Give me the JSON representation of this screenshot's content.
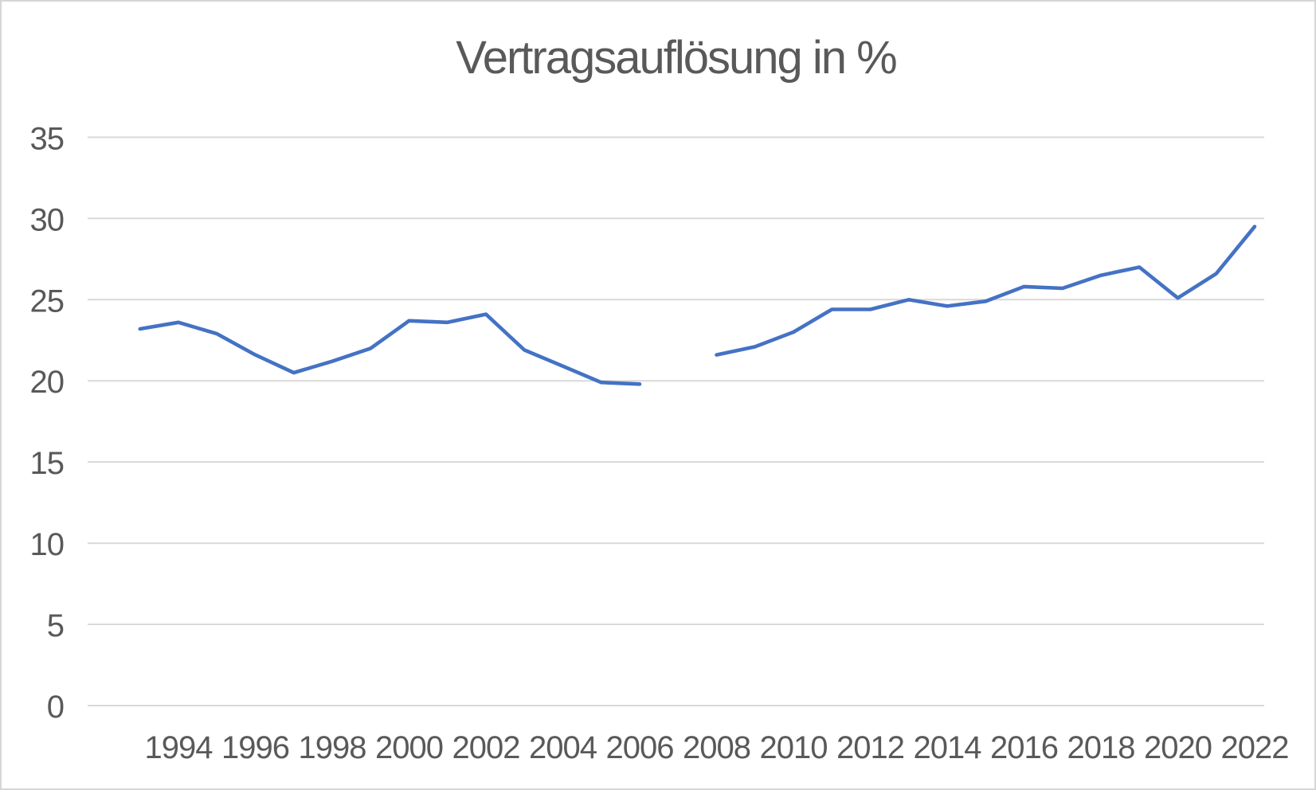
{
  "chart": {
    "title": "Vertragsauflösung in %"
  },
  "chart_data": {
    "type": "line",
    "title": "Vertragsauflösung in %",
    "xlabel": "",
    "ylabel": "",
    "x": [
      1993,
      1994,
      1995,
      1996,
      1997,
      1998,
      1999,
      2000,
      2001,
      2002,
      2003,
      2004,
      2005,
      2006,
      2007,
      2008,
      2009,
      2010,
      2011,
      2012,
      2013,
      2014,
      2015,
      2016,
      2017,
      2018,
      2019,
      2020,
      2021,
      2022
    ],
    "series": [
      {
        "name": "Vertragsauflösung",
        "values": [
          23.2,
          23.6,
          22.9,
          21.6,
          20.5,
          21.2,
          22.0,
          23.7,
          23.6,
          24.1,
          21.9,
          20.9,
          19.9,
          19.8,
          null,
          21.6,
          22.1,
          23.0,
          24.4,
          24.4,
          25.0,
          24.6,
          24.9,
          25.8,
          25.7,
          26.5,
          27.0,
          25.1,
          26.6,
          29.5
        ]
      }
    ],
    "ylim": [
      0,
      35
    ],
    "yticks": [
      0,
      5,
      10,
      15,
      20,
      25,
      30,
      35
    ],
    "xticks": [
      1994,
      1996,
      1998,
      2000,
      2002,
      2004,
      2006,
      2008,
      2010,
      2012,
      2014,
      2016,
      2018,
      2020,
      2022
    ],
    "grid": "horizontal",
    "legend_position": "none",
    "colors": {
      "series": "#4472C4",
      "gridline": "#D9D9D9",
      "tick_text": "#595959",
      "title_text": "#595959",
      "background": "#FFFFFF"
    }
  }
}
